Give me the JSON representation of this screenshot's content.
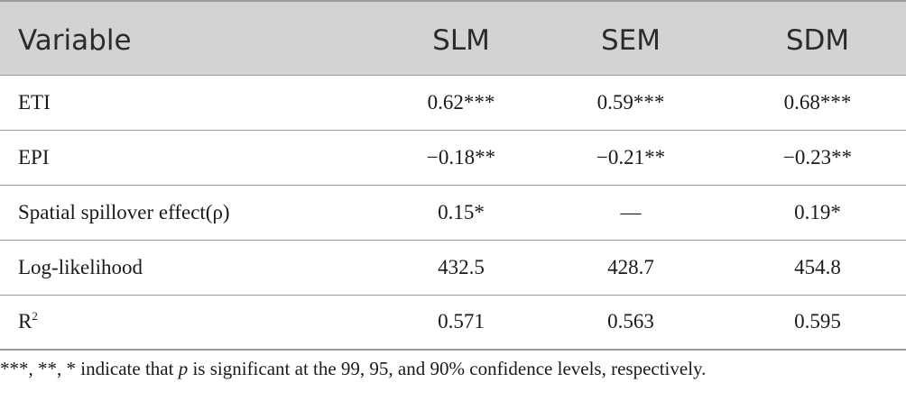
{
  "table": {
    "headers": [
      "Variable",
      "SLM",
      "SEM",
      "SDM"
    ],
    "rows": [
      {
        "label": "ETI",
        "slm": "0.62***",
        "sem": "0.59***",
        "sdm": "0.68***"
      },
      {
        "label": "EPI",
        "slm": "−0.18**",
        "sem": "−0.21**",
        "sdm": "−0.23**"
      },
      {
        "label": "Spatial spillover effect(ρ)",
        "slm": "0.15*",
        "sem": "—",
        "sdm": "0.19*"
      },
      {
        "label": "Log-likelihood",
        "slm": "432.5",
        "sem": "428.7",
        "sdm": "454.8"
      },
      {
        "label_base": "R",
        "label_sup": "2",
        "slm": "0.571",
        "sem": "0.563",
        "sdm": "0.595"
      }
    ]
  },
  "footnote": {
    "before": "***, **, * indicate that ",
    "variable": "p",
    "after": " is significant at the 99, 95, and 90% confidence levels, respectively."
  },
  "colors": {
    "header_background": "#d3d3d3",
    "rule": "#9a9a9a",
    "text": "#1a1a1a"
  }
}
